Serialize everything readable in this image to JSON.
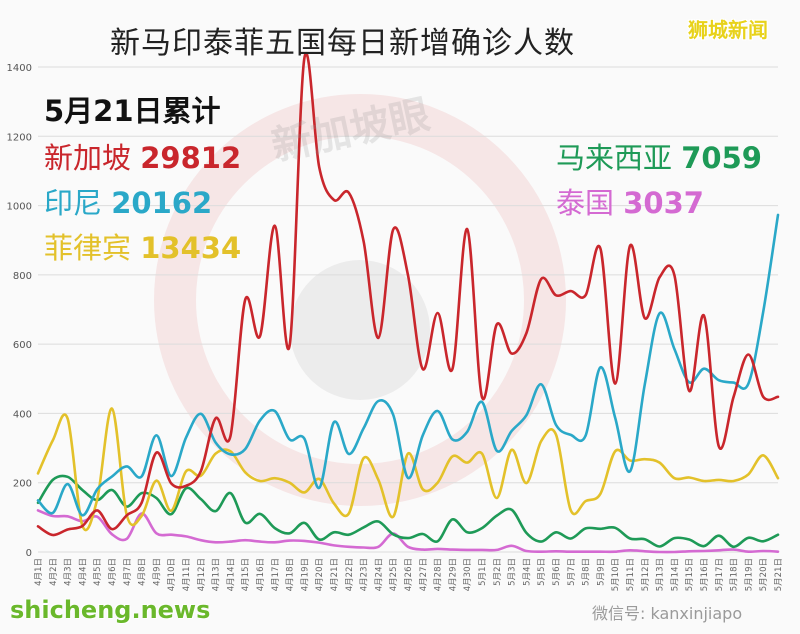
{
  "title": "新马印泰菲五国每日新增确诊人数",
  "corner_label": "狮城新闻",
  "watermark": "新加坡眼",
  "footer_left": "shicheng.news",
  "footer_right": "微信号: kanxinjiapo",
  "legend": {
    "date": "5月21日累计",
    "entries": [
      {
        "name": "新加坡",
        "total": "29812",
        "color": "#c9262c"
      },
      {
        "name": "印尼",
        "total": "20162",
        "color": "#2aa8c8"
      },
      {
        "name": "菲律宾",
        "total": "13434",
        "color": "#e3c12a"
      },
      {
        "name": "马来西亚",
        "total": "7059",
        "color": "#1e9a57"
      },
      {
        "name": "泰国",
        "total": "3037",
        "color": "#d46ad2"
      }
    ]
  },
  "chart_data": {
    "type": "line",
    "ylim": [
      0,
      1400
    ],
    "yticks": [
      0,
      200,
      400,
      600,
      800,
      1000,
      1200,
      1400
    ],
    "grid": true,
    "x": [
      "4月1日",
      "4月2日",
      "4月3日",
      "4月4日",
      "4月5日",
      "4月6日",
      "4月7日",
      "4月8日",
      "4月9日",
      "4月10日",
      "4月11日",
      "4月12日",
      "4月13日",
      "4月14日",
      "4月15日",
      "4月16日",
      "4月17日",
      "4月18日",
      "4月19日",
      "4月20日",
      "4月21日",
      "4月22日",
      "4月23日",
      "4月24日",
      "4月25日",
      "4月26日",
      "4月27日",
      "4月28日",
      "4月29日",
      "4月30日",
      "5月1日",
      "5月2日",
      "5月3日",
      "5月4日",
      "5月5日",
      "5月6日",
      "5月7日",
      "5月8日",
      "5月9日",
      "5月10日",
      "5月11日",
      "5月12日",
      "5月13日",
      "5月14日",
      "5月15日",
      "5月16日",
      "5月17日",
      "5月18日",
      "5月19日",
      "5月20日",
      "5月21日"
    ],
    "series": [
      {
        "name": "新加坡",
        "color": "#c9262c",
        "values": [
          74,
          49,
          65,
          75,
          120,
          66,
          106,
          142,
          287,
          198,
          191,
          233,
          386,
          334,
          728,
          623,
          942,
          596,
          1426,
          1111,
          1016,
          1037,
          897,
          618,
          931,
          799,
          528,
          690,
          528,
          932,
          447,
          657,
          573,
          632,
          788,
          741,
          753,
          741,
          876,
          486,
          884,
          675,
          793,
          799,
          465,
          682,
          305,
          448,
          570,
          448,
          448
        ]
      },
      {
        "name": "印尼",
        "color": "#2aa8c8",
        "values": [
          149,
          113,
          196,
          106,
          181,
          218,
          247,
          218,
          337,
          219,
          330,
          399,
          316,
          282,
          297,
          380,
          407,
          325,
          327,
          185,
          375,
          283,
          357,
          436,
          396,
          214,
          337,
          407,
          325,
          347,
          433,
          292,
          349,
          395,
          484,
          367,
          338,
          336,
          533,
          387,
          233,
          484,
          689,
          586,
          490,
          529,
          496,
          489,
          486,
          693,
          973
        ]
      },
      {
        "name": "菲律宾",
        "color": "#e3c12a",
        "values": [
          227,
          322,
          385,
          76,
          152,
          414,
          106,
          104,
          206,
          119,
          233,
          220,
          284,
          291,
          230,
          205,
          213,
          200,
          172,
          211,
          140,
          111,
          271,
          208,
          102,
          284,
          181,
          200,
          276,
          258,
          284,
          156,
          295,
          199,
          320,
          339,
          120,
          147,
          168,
          291,
          264,
          268,
          258,
          213,
          215,
          205,
          208,
          205,
          224,
          279,
          213
        ]
      },
      {
        "name": "马来西亚",
        "color": "#1e9a57",
        "values": [
          142,
          208,
          217,
          179,
          150,
          179,
          131,
          170,
          156,
          109,
          184,
          153,
          118,
          170,
          85,
          110,
          69,
          54,
          84,
          36,
          57,
          50,
          71,
          88,
          51,
          40,
          52,
          31,
          94,
          57,
          69,
          105,
          122,
          55,
          30,
          57,
          39,
          68,
          67,
          70,
          39,
          37,
          16,
          40,
          36,
          17,
          47,
          15,
          41,
          31,
          50
        ]
      },
      {
        "name": "泰国",
        "color": "#d46ad2",
        "values": [
          120,
          104,
          103,
          89,
          102,
          51,
          38,
          111,
          54,
          50,
          45,
          34,
          28,
          30,
          34,
          30,
          28,
          33,
          32,
          27,
          19,
          15,
          13,
          15,
          53,
          15,
          7,
          9,
          7,
          6,
          6,
          6,
          18,
          3,
          1,
          2,
          1,
          1,
          1,
          1,
          5,
          2,
          0,
          0,
          2,
          3,
          5,
          7,
          1,
          3,
          1
        ]
      }
    ]
  }
}
